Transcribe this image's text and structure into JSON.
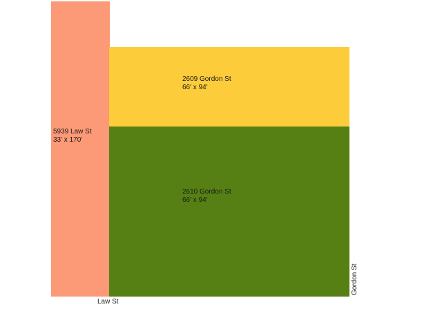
{
  "parcels": [
    {
      "address": "5939 Law St",
      "dimensions": "33' x 170'",
      "color": "#fc9976"
    },
    {
      "address": "2609 Gordon St",
      "dimensions": "66' x 94'",
      "color": "#fccc3a"
    },
    {
      "address": "2610 Gordon St",
      "dimensions": "66' x 94'",
      "color": "#568014"
    }
  ],
  "streets": {
    "law": "Law St",
    "gordon": "Gordon St"
  }
}
